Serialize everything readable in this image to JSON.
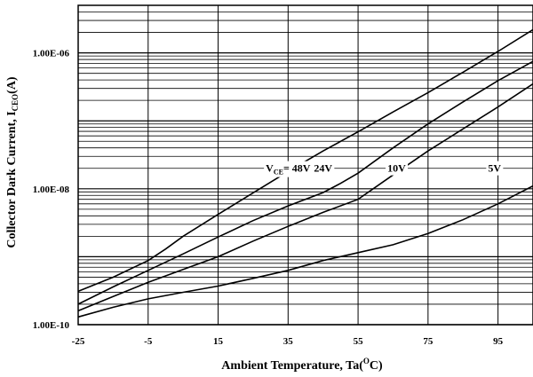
{
  "chart_data": {
    "type": "line",
    "xlabel_main": "Ambient Temperature, Ta(",
    "xlabel_sup": "O",
    "xlabel_tail": "C)",
    "ylabel_main": "Collector Dark Current, I",
    "ylabel_sub": "CEO",
    "ylabel_tail": "(A)",
    "xlim": [
      -25,
      105
    ],
    "ylim_log10": [
      -10,
      -5.3
    ],
    "log_scale_y": true,
    "grid": true,
    "x_ticks": [
      -25,
      -5,
      15,
      35,
      55,
      75,
      95
    ],
    "x_tick_labels": [
      "-25",
      "-5",
      "15",
      "35",
      "55",
      "75",
      "95"
    ],
    "y_ticks_log10": [
      -10,
      -8,
      -6
    ],
    "y_tick_labels": [
      "1.00E-10",
      "1.00E-08",
      "1.00E-06"
    ],
    "series": [
      {
        "name": "V_CE= 48V",
        "x": [
          -25,
          -15,
          -5,
          0,
          5,
          15,
          25,
          35,
          45,
          55,
          65,
          75,
          85,
          95,
          105
        ],
        "y": [
          3.1e-10,
          5e-10,
          8.8e-10,
          1.3e-09,
          2e-09,
          4.2e-09,
          8.7e-09,
          1.8e-08,
          3.6e-08,
          6.9e-08,
          1.35e-07,
          2.6e-07,
          5.2e-07,
          1.05e-06,
          2.2e-06
        ]
      },
      {
        "name": "24V",
        "x": [
          -25,
          -15,
          -5,
          5,
          15,
          25,
          35,
          45,
          50,
          55,
          65,
          75,
          85,
          95,
          105
        ],
        "y": [
          2e-10,
          3.6e-10,
          6.3e-10,
          1.1e-09,
          1.95e-09,
          3.4e-09,
          5.6e-09,
          8.8e-09,
          1.2e-08,
          1.7e-08,
          4e-08,
          9e-08,
          1.9e-07,
          3.9e-07,
          7.5e-07
        ]
      },
      {
        "name": "10V",
        "x": [
          -25,
          -15,
          -5,
          5,
          15,
          25,
          35,
          45,
          55,
          65,
          75,
          85,
          95,
          105
        ],
        "y": [
          1.6e-10,
          2.6e-10,
          4.2e-10,
          6.5e-10,
          1e-09,
          1.7e-09,
          2.8e-09,
          4.5e-09,
          7e-09,
          1.6e-08,
          3.6e-08,
          7.6e-08,
          1.6e-07,
          3.5e-07
        ]
      },
      {
        "name": "5V",
        "x": [
          -25,
          -15,
          -5,
          5,
          15,
          25,
          35,
          45,
          55,
          65,
          75,
          85,
          95,
          105
        ],
        "y": [
          1.3e-10,
          1.8e-10,
          2.4e-10,
          3e-10,
          3.7e-10,
          4.8e-10,
          6.3e-10,
          8.8e-10,
          1.15e-09,
          1.5e-09,
          2.2e-09,
          3.5e-09,
          6e-09,
          1.1e-08
        ]
      }
    ],
    "series_labels": [
      {
        "main": "V",
        "sub": "CE",
        "tail": "= 48V",
        "x": 35,
        "y_log10": -7.75
      },
      {
        "main": "24V",
        "x": 45,
        "y_log10": -7.75
      },
      {
        "main": "10V",
        "x": 66,
        "y_log10": -7.75
      },
      {
        "main": "5V",
        "x": 94,
        "y_log10": -7.75
      }
    ]
  }
}
